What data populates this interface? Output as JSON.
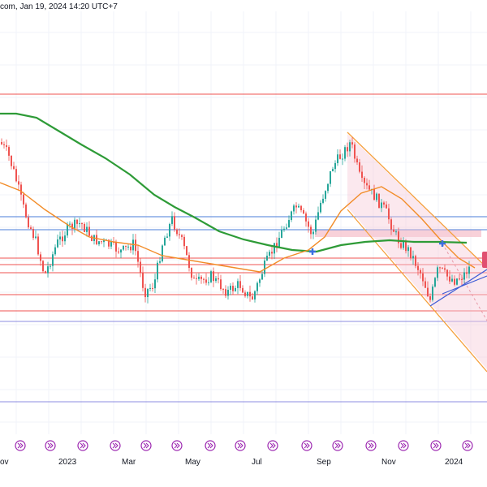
{
  "header": {
    "source_text": "com, Jan 19, 2024 14:20 UTC+7"
  },
  "colors": {
    "candle_up": "#26a69a",
    "candle_down": "#ef5350",
    "ma_long": "#2e9b37",
    "ma_short": "#f28c28",
    "channel": "#f5a03c",
    "channel_fill": "#f7cbd9",
    "resistance_line": "#ef5350",
    "support_line": "#e05b6e",
    "level_blue": "#4a7dd9",
    "level_purple": "#8c8ce0",
    "trendline": "#3d5bd6",
    "marker": "#3b6fe0",
    "event_icon": "#9c27b0"
  },
  "chart_data": {
    "type": "candlestick",
    "title": "",
    "x_tick_labels": [
      "ov",
      "2023",
      "Mar",
      "May",
      "Jul",
      "Sep",
      "Nov",
      "2024"
    ],
    "series": [
      {
        "name": "",
        "kind": "candles"
      },
      {
        "name": "",
        "kind": "moving-average-long"
      },
      {
        "name": "",
        "kind": "moving-average-short"
      }
    ],
    "horizontal_levels": [
      {
        "style": "red",
        "label": ""
      },
      {
        "style": "blue",
        "label": ""
      },
      {
        "style": "blue",
        "label": ""
      },
      {
        "style": "red",
        "label": ""
      },
      {
        "style": "red",
        "label": ""
      },
      {
        "style": "red",
        "label": ""
      },
      {
        "style": "red",
        "label": ""
      },
      {
        "style": "red",
        "label": ""
      },
      {
        "style": "purple",
        "label": ""
      },
      {
        "style": "purple",
        "label": ""
      }
    ],
    "event_icon_count": 15,
    "grid": true
  }
}
